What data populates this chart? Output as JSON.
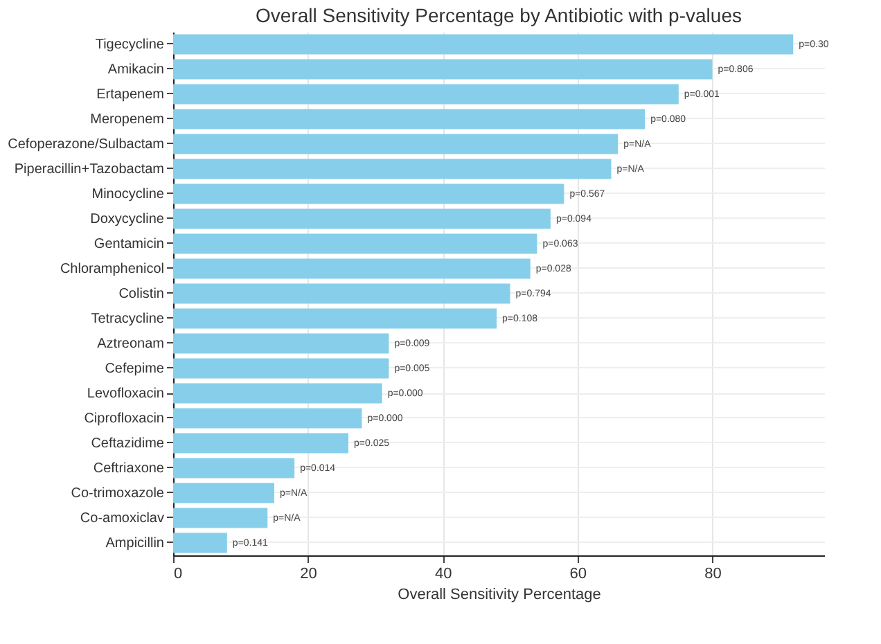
{
  "chart_data": {
    "type": "bar",
    "orientation": "horizontal",
    "title": "Overall Sensitivity Percentage by Antibiotic with p-values",
    "xlabel": "Overall Sensitivity Percentage",
    "categories": [
      "Tigecycline",
      "Amikacin",
      "Ertapenem",
      "Meropenem",
      "Cefoperazone/Sulbactam",
      "Piperacillin+Tazobactam",
      "Minocycline",
      "Doxycycline",
      "Gentamicin",
      "Chloramphenicol",
      "Colistin",
      "Tetracycline",
      "Aztreonam",
      "Cefepime",
      "Levofloxacin",
      "Ciprofloxacin",
      "Ceftazidime",
      "Ceftriaxone",
      "Co-trimoxazole",
      "Co-amoxiclav",
      "Ampicillin"
    ],
    "values": [
      92,
      80,
      75,
      70,
      66,
      65,
      58,
      56,
      54,
      53,
      50,
      48,
      32,
      32,
      31,
      28,
      26,
      18,
      15,
      14,
      8
    ],
    "annotations": [
      {
        "text": "p=0.30",
        "x": 92,
        "y": "Tigecycline"
      },
      {
        "text": "p=0.806",
        "x": 80,
        "y": "Amikacin"
      },
      {
        "text": "p=0.001",
        "x": 75,
        "y": "Ertapenem"
      },
      {
        "text": "p=0.080",
        "x": 70,
        "y": "Meropenem"
      },
      {
        "text": "p=N/A",
        "x": 66,
        "y": "Cefoperazone/Sulbactam"
      },
      {
        "text": "p=N/A",
        "x": 65,
        "y": "Piperacillin+Tazobactam"
      },
      {
        "text": "p=0.567",
        "x": 58,
        "y": "Minocycline"
      },
      {
        "text": "p=0.094",
        "x": 56,
        "y": "Doxycycline"
      },
      {
        "text": "p=0.063",
        "x": 54,
        "y": "Gentamicin"
      },
      {
        "text": "p=0.028",
        "x": 53,
        "y": "Chloramphenicol"
      },
      {
        "text": "p=0.794",
        "x": 50,
        "y": "Colistin"
      },
      {
        "text": "p=0.108",
        "x": 48,
        "y": "Tetracycline"
      },
      {
        "text": "p=0.009",
        "x": 32,
        "y": "Aztreonam"
      },
      {
        "text": "p=0.005",
        "x": 32,
        "y": "Cefepime"
      },
      {
        "text": "p=0.000",
        "x": 31,
        "y": "Levofloxacin"
      },
      {
        "text": "p=0.000",
        "x": 28,
        "y": "Ciprofloxacin"
      },
      {
        "text": "p=0.025",
        "x": 26,
        "y": "Ceftazidime"
      },
      {
        "text": "p=0.014",
        "x": 18,
        "y": "Ceftriaxone"
      },
      {
        "text": "p=N/A",
        "x": 15,
        "y": "Co-trimoxazole"
      },
      {
        "text": "p=N/A",
        "x": 14,
        "y": "Co-amoxiclav"
      },
      {
        "text": "p=0.141",
        "x": 8,
        "y": "Ampicillin"
      }
    ],
    "color": "#87ceeb",
    "xlim": [
      0,
      96.6
    ],
    "xticks": [
      0,
      20,
      40,
      60,
      80
    ],
    "grid": true
  }
}
